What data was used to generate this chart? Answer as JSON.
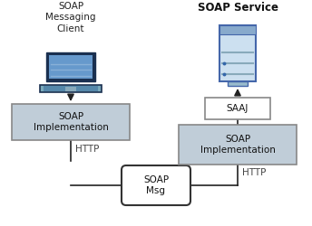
{
  "bg_color": "#ffffff",
  "left_title": "SOAP\nMessaging\nClient",
  "right_title": "SOAP Service",
  "left_box_label": "SOAP\nImplementation",
  "right_box_label": "SOAP\nImplementation",
  "saaj_label": "SAAJ",
  "soap_msg_label": "SOAP\nMsg",
  "http_left_label": "HTTP",
  "http_right_label": "HTTP",
  "box_fill": "#c0cdd8",
  "box_edge": "#888888",
  "saaj_fill": "#ffffff",
  "saaj_edge": "#888888",
  "soap_msg_fill": "#ffffff",
  "soap_msg_edge": "#333333",
  "arrow_color": "#222222",
  "line_color": "#222222"
}
